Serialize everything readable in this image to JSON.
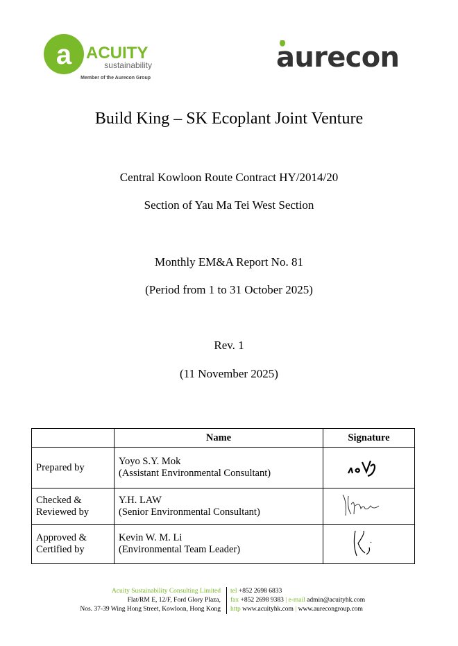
{
  "logos": {
    "acuity_name": "ACUITY",
    "acuity_sub": "sustainability",
    "acuity_member": "Member of the Aurecon Group",
    "aurecon": "aurecon",
    "accent": "#7ab929"
  },
  "title": "Build King – SK Ecoplant Joint Venture",
  "contract": "Central Kowloon Route Contract HY/2014/20",
  "section": "Section of Yau Ma Tei West Section",
  "report": "Monthly EM&A Report No. 81",
  "period": "(Period from 1 to 31 October 2025)",
  "rev": "Rev. 1",
  "date": "(11 November 2025)",
  "table": {
    "headers": [
      "",
      "Name",
      "Signature"
    ],
    "rows": [
      {
        "role": "Prepared by",
        "name": "Yoyo S.Y. Mok",
        "title": "(Assistant Environmental Consultant)"
      },
      {
        "role": "Checked & Reviewed by",
        "name": "Y.H. LAW",
        "title": "(Senior Environmental Consultant)"
      },
      {
        "role": "Approved & Certified by",
        "name": "Kevin W. M. Li",
        "title": "(Environmental Team Leader)"
      }
    ]
  },
  "footer": {
    "company": "Acuity Sustainability Consulting Limited",
    "addr1": "Flat/RM E, 12/F, Ford Glory Plaza,",
    "addr2": "Nos. 37-39 Wing Hong Street, Kowloon, Hong Kong",
    "tel_label": "tel",
    "tel": "+852 2698 6833",
    "fax_label": "fax",
    "fax": "+852 2698 9383",
    "email_label": "e-mail",
    "email": "admin@acuityhk.com",
    "http_label": "http",
    "web1": "www.acuityhk.com",
    "web2": "www.aurecongroup.com"
  }
}
